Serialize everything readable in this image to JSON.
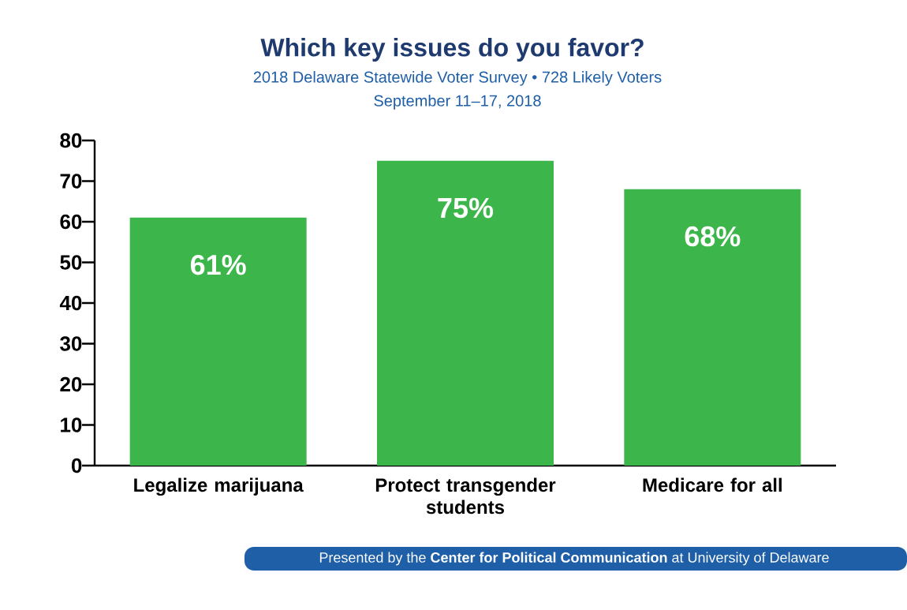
{
  "chart_data": {
    "type": "bar",
    "title": "Which key issues do you favor?",
    "subtitle": "2018 Delaware Statewide Voter Survey • 728 Likely Voters\nSeptember 11–17, 2018",
    "categories": [
      "Legalize marijuana",
      "Protect transgender students",
      "Medicare for all"
    ],
    "values": [
      61,
      75,
      68
    ],
    "color": "#3cb54a",
    "value_labels": [
      "61%",
      "75%",
      "68%"
    ],
    "ylim": [
      0,
      80
    ],
    "yticks": [
      0,
      10,
      20,
      30,
      40,
      50,
      60,
      70,
      80
    ],
    "grid": false,
    "annotations": [
      "Presented by the **Center for Political Communication** at University of Delaware"
    ]
  }
}
